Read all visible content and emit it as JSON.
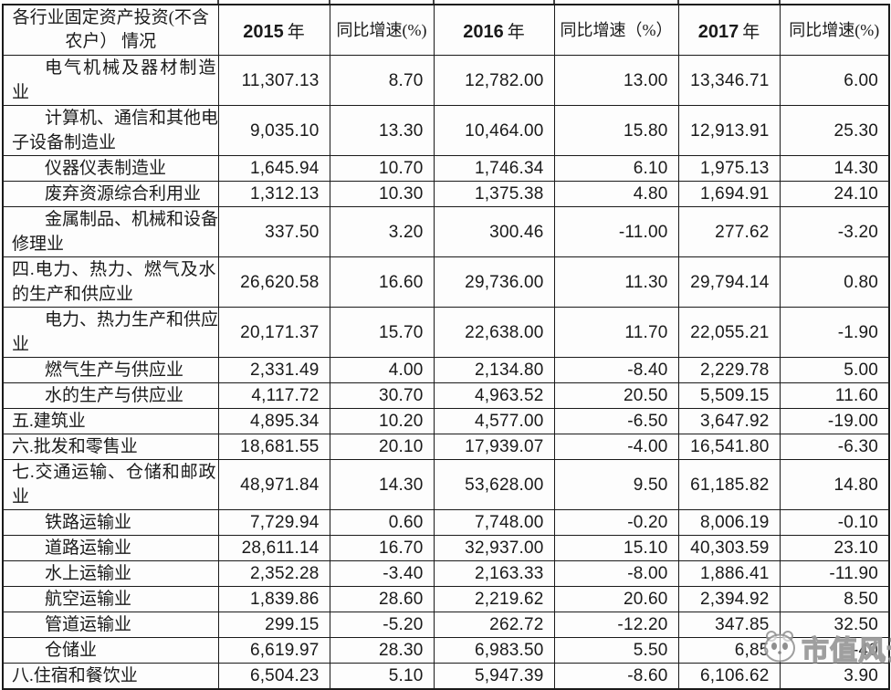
{
  "table": {
    "header": {
      "industry_line1": "各行业固定资产投资(不含",
      "industry_line2": "农户） 情况",
      "y2015": {
        "num": "2015",
        "unit": "年"
      },
      "growth_2015": "同比增速(%)",
      "y2016": {
        "num": "2016",
        "unit": "年"
      },
      "growth_2016": "同比增速（%）",
      "y2017": {
        "num": "2017",
        "unit": "年"
      },
      "growth_2017": "同比增速(%)"
    },
    "rows": [
      {
        "lines": [
          "电气机械及器材制造",
          "业"
        ],
        "indent": true,
        "values": [
          "11,307.13",
          "8.70",
          "12,782.00",
          "13.00",
          "13,346.71",
          "6.00"
        ]
      },
      {
        "lines": [
          "计算机、通信和其他电",
          "子设备制造业"
        ],
        "indent": true,
        "values": [
          "9,035.10",
          "13.30",
          "10,464.00",
          "15.80",
          "12,913.91",
          "25.30"
        ]
      },
      {
        "lines": [
          "仪器仪表制造业"
        ],
        "indent": true,
        "values": [
          "1,645.94",
          "10.70",
          "1,746.34",
          "6.10",
          "1,975.13",
          "14.30"
        ]
      },
      {
        "lines": [
          "废弃资源综合利用业"
        ],
        "indent": true,
        "values": [
          "1,312.13",
          "10.30",
          "1,375.38",
          "4.80",
          "1,694.91",
          "24.10"
        ]
      },
      {
        "lines": [
          "金属制品、机械和设备",
          "修理业"
        ],
        "indent": true,
        "values": [
          "337.50",
          "3.20",
          "300.46",
          "-11.00",
          "277.62",
          "-3.20"
        ]
      },
      {
        "lines": [
          "四.电力、热力、燃气及水",
          "的生产和供应业"
        ],
        "indent": false,
        "values": [
          "26,620.58",
          "16.60",
          "29,736.00",
          "11.30",
          "29,794.14",
          "0.80"
        ]
      },
      {
        "lines": [
          "电力、热力生产和供应",
          "业"
        ],
        "indent": true,
        "values": [
          "20,171.37",
          "15.70",
          "22,638.00",
          "11.70",
          "22,055.21",
          "-1.90"
        ]
      },
      {
        "lines": [
          "燃气生产与供应业"
        ],
        "indent": true,
        "values": [
          "2,331.49",
          "4.00",
          "2,134.80",
          "-8.40",
          "2,229.78",
          "5.00"
        ]
      },
      {
        "lines": [
          "水的生产与供应业"
        ],
        "indent": true,
        "values": [
          "4,117.72",
          "30.70",
          "4,963.52",
          "20.50",
          "5,509.15",
          "11.60"
        ]
      },
      {
        "lines": [
          "五.建筑业"
        ],
        "indent": false,
        "values": [
          "4,895.34",
          "10.20",
          "4,577.00",
          "-6.50",
          "3,647.92",
          "-19.00"
        ]
      },
      {
        "lines": [
          "六.批发和零售业"
        ],
        "indent": false,
        "values": [
          "18,681.55",
          "20.10",
          "17,939.07",
          "-4.00",
          "16,541.80",
          "-6.30"
        ]
      },
      {
        "lines": [
          "七.交通运输、仓储和邮政",
          "业"
        ],
        "indent": false,
        "values": [
          "48,971.84",
          "14.30",
          "53,628.00",
          "9.50",
          "61,185.82",
          "14.80"
        ]
      },
      {
        "lines": [
          "铁路运输业"
        ],
        "indent": true,
        "values": [
          "7,729.94",
          "0.60",
          "7,748.00",
          "-0.20",
          "8,006.19",
          "-0.10"
        ]
      },
      {
        "lines": [
          "道路运输业"
        ],
        "indent": true,
        "values": [
          "28,611.14",
          "16.70",
          "32,937.00",
          "15.10",
          "40,303.59",
          "23.10"
        ]
      },
      {
        "lines": [
          "水上运输业"
        ],
        "indent": true,
        "values": [
          "2,352.28",
          "-3.40",
          "2,163.33",
          "-8.00",
          "1,886.41",
          "-11.90"
        ]
      },
      {
        "lines": [
          "航空运输业"
        ],
        "indent": true,
        "values": [
          "1,839.86",
          "28.60",
          "2,219.62",
          "20.60",
          "2,394.92",
          "8.50"
        ]
      },
      {
        "lines": [
          "管道运输业"
        ],
        "indent": true,
        "values": [
          "299.15",
          "-5.20",
          "262.72",
          "-12.20",
          "347.85",
          "32.50"
        ]
      },
      {
        "lines": [
          "仓储业"
        ],
        "indent": true,
        "obscured_2017": true,
        "values": [
          "6,619.97",
          "28.30",
          "6,983.50",
          "5.50",
          "6,85",
          "-40"
        ]
      },
      {
        "lines": [
          "八.住宿和餐饮业"
        ],
        "indent": false,
        "values": [
          "6,504.23",
          "5.10",
          "5,947.39",
          "-8.60",
          "6,106.62",
          "3.90"
        ]
      }
    ]
  },
  "watermark": {
    "text": "市值风云",
    "logo": "panda-logo-icon"
  }
}
